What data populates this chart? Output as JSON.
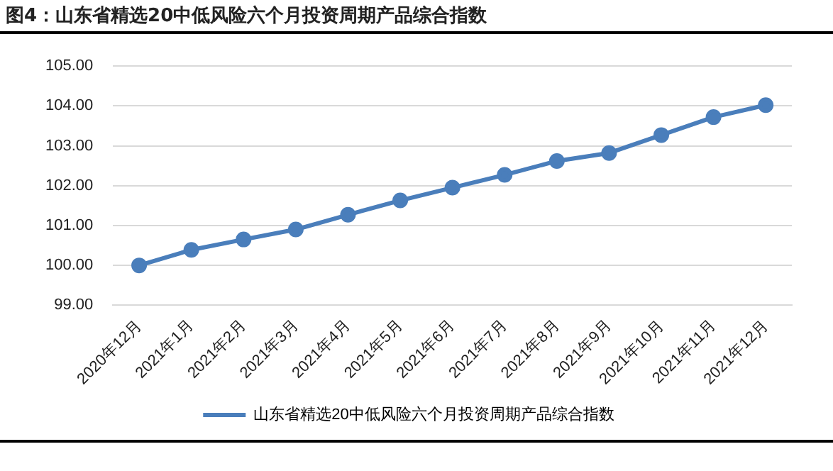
{
  "chart_data": {
    "type": "line",
    "title": "图4：山东省精选20中低风险六个月投资周期产品综合指数",
    "categories": [
      "2020年12月",
      "2021年1月",
      "2021年2月",
      "2021年3月",
      "2021年4月",
      "2021年5月",
      "2021年6月",
      "2021年7月",
      "2021年8月",
      "2021年9月",
      "2021年10月",
      "2021年11月",
      "2021年12月"
    ],
    "series": [
      {
        "name": "山东省精选20中低风险六个月投资周期产品综合指数",
        "color": "#4a7ebb",
        "values": [
          100.0,
          100.39,
          100.65,
          100.9,
          101.27,
          101.63,
          101.95,
          102.27,
          102.62,
          102.82,
          103.27,
          103.72,
          104.02
        ]
      }
    ],
    "ylim": [
      99,
      105
    ],
    "yticks": [
      {
        "value": 99,
        "label": "99.00"
      },
      {
        "value": 100,
        "label": "100.00"
      },
      {
        "value": 101,
        "label": "101.00"
      },
      {
        "value": 102,
        "label": "102.00"
      },
      {
        "value": 103,
        "label": "103.00"
      },
      {
        "value": 104,
        "label": "104.00"
      },
      {
        "value": 105,
        "label": "105.00"
      }
    ],
    "grid": "y",
    "legend": "bottom",
    "marker": "circle",
    "line_style": "solid"
  }
}
